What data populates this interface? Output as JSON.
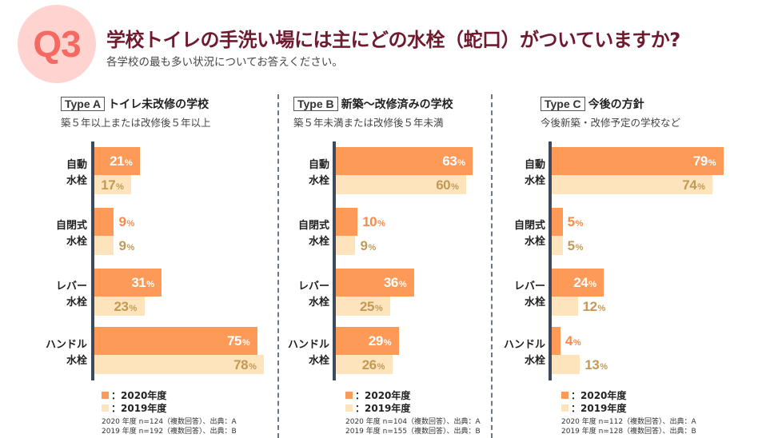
{
  "header": {
    "badge": "Q3",
    "title": "学校トイレの手洗い場には主にどの水栓（蛇口）がついていますか?",
    "subtitle": "各学校の最も多い状況についてお答えください。"
  },
  "colors": {
    "series_2020": "#fe9a57",
    "series_2019": "#fde4bd",
    "title": "#6e1a2f",
    "badge_bg": "#ffd3cf",
    "badge_text": "#f46a62"
  },
  "chart_data": [
    {
      "type": "bar",
      "orientation": "horizontal",
      "tag": "Type A",
      "title": "トイレ未改修の学校",
      "subtitle": "築５年以上または改修後５年以上",
      "categories": [
        [
          "自動",
          "水栓"
        ],
        [
          "自閉式",
          "水栓"
        ],
        [
          "レバー",
          "水栓"
        ],
        [
          "ハンドル",
          "水栓"
        ]
      ],
      "series": [
        {
          "name": "：2020年度",
          "values": [
            21,
            9,
            31,
            75
          ]
        },
        {
          "name": "：2019年度",
          "values": [
            17,
            9,
            23,
            78
          ]
        }
      ],
      "unit": "%",
      "xlim": [
        0,
        100
      ],
      "legend": "bottom-left",
      "notes": [
        "2020 年度  n=124（複数回答）、出典：A",
        "2019 年度  n=192（複数回答）、出典：B"
      ]
    },
    {
      "type": "bar",
      "orientation": "horizontal",
      "tag": "Type B",
      "title": "新築～改修済みの学校",
      "subtitle": "築５年未満または改修後５年未満",
      "categories": [
        [
          "自動",
          "水栓"
        ],
        [
          "自閉式",
          "水栓"
        ],
        [
          "レバー",
          "水栓"
        ],
        [
          "ハンドル",
          "水栓"
        ]
      ],
      "series": [
        {
          "name": "：2020年度",
          "values": [
            63,
            10,
            36,
            29
          ]
        },
        {
          "name": "：2019年度",
          "values": [
            60,
            9,
            25,
            26
          ]
        }
      ],
      "unit": "%",
      "xlim": [
        0,
        100
      ],
      "legend": "bottom-left",
      "notes": [
        "2020 年度  n=104（複数回答）、出典：A",
        "2019 年度  n=155（複数回答）、出典：B"
      ]
    },
    {
      "type": "bar",
      "orientation": "horizontal",
      "tag": "Type C",
      "title": "今後の方針",
      "subtitle": "今後新築・改修予定の学校など",
      "categories": [
        [
          "自動",
          "水栓"
        ],
        [
          "自閉式",
          "水栓"
        ],
        [
          "レバー",
          "水栓"
        ],
        [
          "ハンドル",
          "水栓"
        ]
      ],
      "series": [
        {
          "name": "：2020年度",
          "values": [
            79,
            5,
            24,
            4
          ]
        },
        {
          "name": "：2019年度",
          "values": [
            74,
            5,
            12,
            13
          ]
        }
      ],
      "unit": "%",
      "xlim": [
        0,
        100
      ],
      "legend": "bottom-left",
      "notes": [
        "2020 年度  n=112（複数回答）、出典：A",
        "2019 年度  n=128（複数回答）、出典：B"
      ]
    }
  ]
}
